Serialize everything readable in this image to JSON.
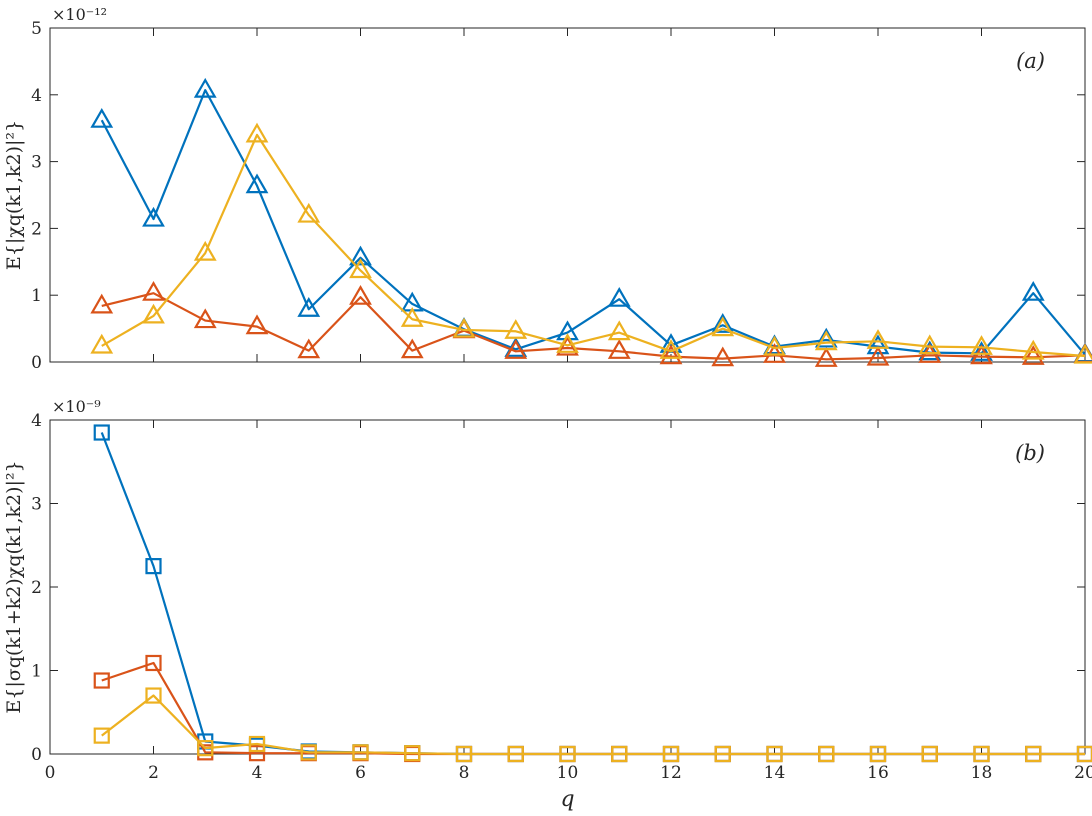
{
  "chart_data": [
    {
      "type": "line",
      "marker": "triangle",
      "panel_label": "(a)",
      "ylabel": "E{|χq(k1,k2)|²}",
      "exponent_label": "×10⁻¹²",
      "xlabel": "",
      "xlim": [
        0,
        20
      ],
      "ylim": [
        0,
        5
      ],
      "yticks": [
        "0",
        "1",
        "2",
        "3",
        "4",
        "5"
      ],
      "grid": false,
      "x": [
        1,
        2,
        3,
        4,
        5,
        6,
        7,
        8,
        9,
        10,
        11,
        12,
        13,
        14,
        15,
        16,
        17,
        18,
        19,
        20
      ],
      "series": [
        {
          "color": "#0072BD",
          "values": [
            3.62,
            2.14,
            4.07,
            2.64,
            0.79,
            1.56,
            0.87,
            0.49,
            0.19,
            0.44,
            0.94,
            0.25,
            0.55,
            0.23,
            0.33,
            0.23,
            0.14,
            0.13,
            1.03,
            0.11
          ]
        },
        {
          "color": "#D95319",
          "values": [
            0.84,
            1.03,
            0.62,
            0.53,
            0.17,
            0.97,
            0.17,
            0.47,
            0.16,
            0.21,
            0.16,
            0.08,
            0.05,
            0.1,
            0.04,
            0.06,
            0.1,
            0.08,
            0.07,
            0.1
          ]
        },
        {
          "color": "#EDB120",
          "values": [
            0.24,
            0.69,
            1.63,
            3.4,
            2.2,
            1.37,
            0.64,
            0.48,
            0.46,
            0.25,
            0.44,
            0.16,
            0.5,
            0.21,
            0.29,
            0.31,
            0.23,
            0.22,
            0.15,
            0.09
          ]
        }
      ]
    },
    {
      "type": "line",
      "marker": "square",
      "panel_label": "(b)",
      "ylabel": "E{|σq(k1+k2)χq(k1,k2)|²}",
      "exponent_label": "×10⁻⁹",
      "xlabel": "q",
      "xlim": [
        0,
        20
      ],
      "ylim": [
        0,
        4
      ],
      "yticks": [
        "0",
        "1",
        "2",
        "3",
        "4"
      ],
      "xticks": [
        "0",
        "2",
        "4",
        "6",
        "8",
        "10",
        "12",
        "14",
        "16",
        "18",
        "20"
      ],
      "grid": false,
      "x": [
        1,
        2,
        3,
        4,
        5,
        6,
        7,
        8,
        9,
        10,
        11,
        12,
        13,
        14,
        15,
        16,
        17,
        18,
        19,
        20
      ],
      "series": [
        {
          "color": "#0072BD",
          "values": [
            3.85,
            2.25,
            0.15,
            0.1,
            0.03,
            0.02,
            0.01,
            0,
            0,
            0,
            0,
            0,
            0,
            0,
            0,
            0,
            0,
            0,
            0,
            0
          ]
        },
        {
          "color": "#D95319",
          "values": [
            0.88,
            1.09,
            0.02,
            0.01,
            0.01,
            0.01,
            0,
            0,
            0,
            0,
            0,
            0,
            0,
            0,
            0,
            0,
            0,
            0,
            0,
            0
          ]
        },
        {
          "color": "#EDB120",
          "values": [
            0.22,
            0.7,
            0.07,
            0.12,
            0.02,
            0.02,
            0.01,
            0,
            0,
            0,
            0,
            0,
            0,
            0,
            0,
            0,
            0,
            0,
            0,
            0
          ]
        }
      ]
    }
  ]
}
